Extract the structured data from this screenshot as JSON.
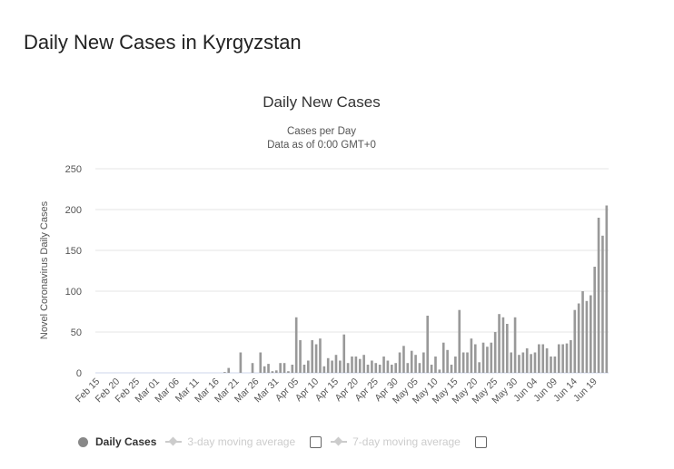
{
  "page_title": "Daily New Cases in Kyrgyzstan",
  "chart_data": {
    "type": "bar",
    "title": "Daily New Cases",
    "subtitle": [
      "Cases per Day",
      "Data as of 0:00 GMT+0"
    ],
    "ylabel": "Novel Coronavirus Daily Cases",
    "xlabel": "",
    "ylim": [
      0,
      250
    ],
    "yticks": [
      0,
      50,
      100,
      150,
      200,
      250
    ],
    "grid": true,
    "start_date": "Feb 15",
    "xtick_labels": [
      "Feb 15",
      "Feb 20",
      "Feb 25",
      "Mar 01",
      "Mar 06",
      "Mar 11",
      "Mar 16",
      "Mar 21",
      "Mar 26",
      "Mar 31",
      "Apr 05",
      "Apr 10",
      "Apr 15",
      "Apr 20",
      "Apr 25",
      "Apr 30",
      "May 05",
      "May 10",
      "May 15",
      "May 20",
      "May 25",
      "May 30",
      "Jun 04",
      "Jun 09",
      "Jun 14",
      "Jun 19"
    ],
    "xtick_every_days": 5,
    "values": [
      0,
      0,
      0,
      0,
      0,
      0,
      0,
      0,
      0,
      0,
      0,
      0,
      0,
      0,
      0,
      0,
      0,
      0,
      0,
      0,
      0,
      0,
      0,
      0,
      0,
      0,
      0,
      0,
      0,
      0,
      0,
      0,
      1,
      6,
      0,
      0,
      25,
      0,
      0,
      12,
      0,
      25,
      8,
      11,
      2,
      3,
      12,
      12,
      2,
      10,
      68,
      40,
      10,
      15,
      40,
      35,
      42,
      8,
      18,
      15,
      22,
      15,
      47,
      12,
      20,
      20,
      17,
      22,
      10,
      15,
      12,
      10,
      20,
      15,
      10,
      12,
      25,
      33,
      12,
      27,
      22,
      12,
      25,
      70,
      10,
      20,
      4,
      37,
      28,
      10,
      20,
      77,
      25,
      25,
      42,
      35,
      13,
      37,
      32,
      37,
      50,
      72,
      68,
      60,
      25,
      68,
      22,
      25,
      30,
      23,
      25,
      35,
      35,
      30,
      20,
      20,
      35,
      35,
      36,
      40,
      77,
      85,
      100,
      88,
      95,
      130,
      190,
      168,
      205
    ],
    "color": "#999999",
    "legend": {
      "placement": "bottom-left",
      "entries": [
        "Daily Cases",
        "3-day moving average",
        "7-day moving average"
      ]
    }
  }
}
